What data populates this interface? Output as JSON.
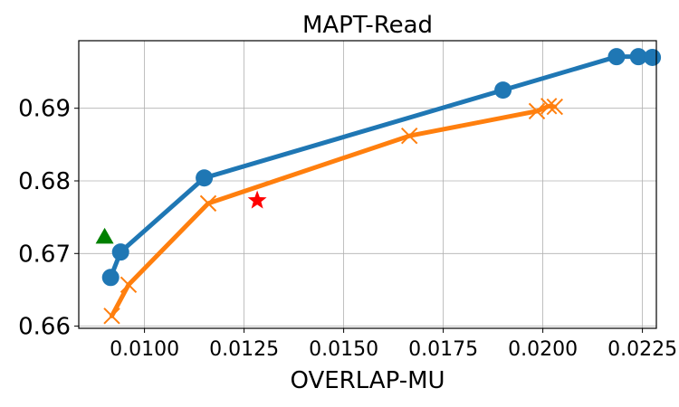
{
  "chart_data": {
    "type": "line",
    "title": "MAPT-Read",
    "xlabel": "OVERLAP-MU",
    "ylabel": "",
    "xlim": [
      0.00835,
      0.02285
    ],
    "ylim": [
      0.6597,
      0.6993
    ],
    "grid": true,
    "legend": "none",
    "xticks": [
      {
        "value": 0.01,
        "label": "0.0100"
      },
      {
        "value": 0.0125,
        "label": "0.0125"
      },
      {
        "value": 0.015,
        "label": "0.0150"
      },
      {
        "value": 0.0175,
        "label": "0.0175"
      },
      {
        "value": 0.02,
        "label": "0.0200"
      },
      {
        "value": 0.0225,
        "label": "0.0225"
      }
    ],
    "yticks": [
      {
        "value": 0.66,
        "label": "0.66"
      },
      {
        "value": 0.67,
        "label": "0.67"
      },
      {
        "value": 0.68,
        "label": "0.68"
      },
      {
        "value": 0.69,
        "label": "0.69"
      }
    ],
    "series": [
      {
        "color": "#1f77b4",
        "marker": "circle",
        "line": true,
        "points": [
          [
            0.00915,
            0.6667
          ],
          [
            0.0094,
            0.6702
          ],
          [
            0.0115,
            0.6804
          ],
          [
            0.019,
            0.6925
          ],
          [
            0.02185,
            0.6971
          ],
          [
            0.0224,
            0.6971
          ],
          [
            0.02275,
            0.697
          ]
        ]
      },
      {
        "color": "#ff7f0e",
        "marker": "x",
        "line": true,
        "points": [
          [
            0.00918,
            0.6614
          ],
          [
            0.0096,
            0.6657
          ],
          [
            0.0116,
            0.6769
          ],
          [
            0.01665,
            0.6862
          ],
          [
            0.01985,
            0.6896
          ],
          [
            0.02015,
            0.6903
          ],
          [
            0.0203,
            0.6902
          ]
        ]
      },
      {
        "color": "#ff0000",
        "marker": "star",
        "line": false,
        "points": [
          [
            0.01283,
            0.6773
          ]
        ]
      },
      {
        "color": "#008000",
        "marker": "triangle",
        "line": false,
        "points": [
          [
            0.009,
            0.6723
          ]
        ]
      }
    ]
  }
}
